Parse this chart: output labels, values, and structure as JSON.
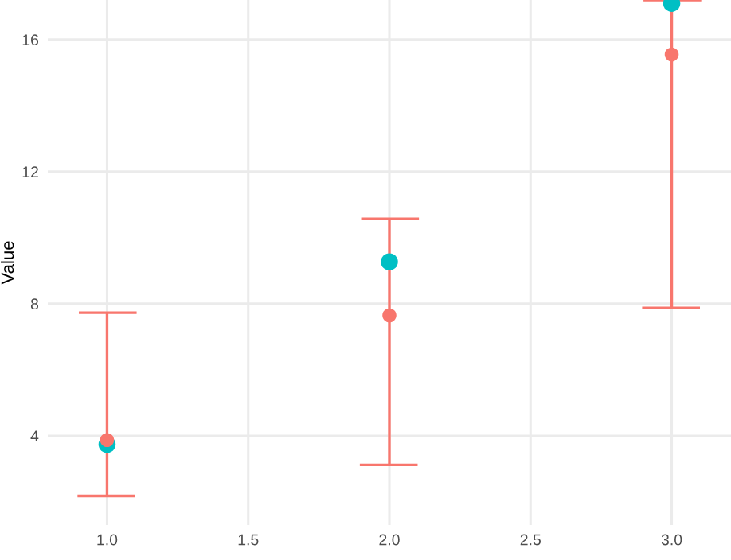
{
  "chart_data": {
    "type": "scatter",
    "ylabel": "Value",
    "x": [
      1.0,
      2.0,
      3.0
    ],
    "series": [
      {
        "color": "#00bfc4",
        "values": [
          3.74,
          9.27,
          17.1
        ]
      },
      {
        "color": "#f8766d",
        "values": [
          3.87,
          7.65,
          15.55
        ],
        "errors": [
          [
            2.18,
            7.73
          ],
          [
            3.12,
            10.57
          ],
          [
            7.87,
            17.2
          ]
        ]
      }
    ],
    "xlim": [
      0.79,
      3.21
    ],
    "xticks": [
      {
        "value": 1.0,
        "label": "1.0"
      },
      {
        "value": 1.5,
        "label": "1.5"
      },
      {
        "value": 2.0,
        "label": "2.0"
      },
      {
        "value": 2.5,
        "label": "2.5"
      },
      {
        "value": 3.0,
        "label": "3.0"
      }
    ],
    "ylim": [
      1.3,
      17.2
    ],
    "yticks": [
      4,
      8,
      12,
      16
    ],
    "grid": true,
    "marker": "circle"
  }
}
